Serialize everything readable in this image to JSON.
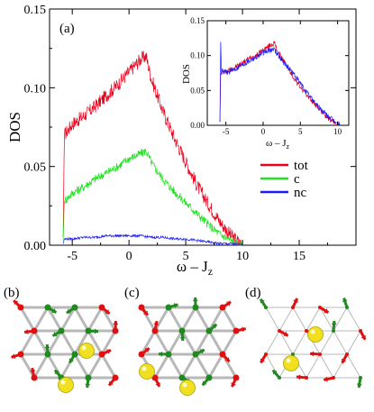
{
  "chart_data": {
    "type": "line",
    "panel_label": "(a)",
    "xlabel": "ω – J",
    "xlabel_sub": "z",
    "ylabel": "DOS",
    "xlim": [
      -7,
      20
    ],
    "ylim": [
      0,
      0.15
    ],
    "x_ticks": [
      -5,
      0,
      5,
      10,
      15
    ],
    "y_ticks": [
      0.0,
      0.05,
      0.1,
      0.15
    ],
    "x_tick_labels": [
      "-5",
      "0",
      "5",
      "10",
      "15"
    ],
    "y_tick_labels": [
      "0.00",
      "0.05",
      "0.10",
      "0.15"
    ],
    "legend_position": "right-middle",
    "series": [
      {
        "name": "tot",
        "color": "#e8001c",
        "x": [
          -5.8,
          -5.7,
          -5.0,
          -4.0,
          -3.0,
          -2.0,
          -1.0,
          0.0,
          1.0,
          1.5,
          2.0,
          3.0,
          4.0,
          5.0,
          6.0,
          7.0,
          8.0,
          9.0,
          9.5,
          10.0
        ],
        "y": [
          0.005,
          0.07,
          0.077,
          0.082,
          0.088,
          0.095,
          0.102,
          0.11,
          0.118,
          0.12,
          0.105,
          0.085,
          0.068,
          0.053,
          0.038,
          0.026,
          0.015,
          0.006,
          0.003,
          0.0
        ]
      },
      {
        "name": "c",
        "color": "#22e022",
        "x": [
          -5.8,
          -5.7,
          -5.0,
          -4.0,
          -3.0,
          -2.0,
          -1.0,
          0.0,
          1.0,
          1.5,
          2.0,
          3.0,
          4.0,
          5.0,
          6.0,
          7.0,
          8.0,
          9.0,
          9.5,
          10.0
        ],
        "y": [
          0.003,
          0.028,
          0.033,
          0.037,
          0.042,
          0.046,
          0.05,
          0.055,
          0.058,
          0.06,
          0.052,
          0.042,
          0.034,
          0.027,
          0.02,
          0.013,
          0.007,
          0.003,
          0.001,
          0.0
        ]
      },
      {
        "name": "nc",
        "color": "#1a1aff",
        "x": [
          -5.8,
          -5.7,
          -5.0,
          -4.0,
          -3.0,
          -2.0,
          -1.0,
          0.0,
          1.0,
          2.0,
          3.0,
          4.0,
          5.0,
          6.0,
          7.0,
          8.0,
          9.0,
          10.0
        ],
        "y": [
          0.001,
          0.004,
          0.004,
          0.005,
          0.005,
          0.006,
          0.006,
          0.006,
          0.006,
          0.005,
          0.005,
          0.004,
          0.004,
          0.003,
          0.002,
          0.001,
          0.001,
          0.0
        ]
      }
    ],
    "inset": {
      "xlabel": "ω – J",
      "xlabel_sub": "z",
      "ylabel": "DOS",
      "xlim": [
        -7.5,
        11.5
      ],
      "ylim": [
        0,
        0.15
      ],
      "x_ticks": [
        -5,
        0,
        5,
        10
      ],
      "y_ticks": [
        0.0,
        0.05,
        0.1,
        0.15
      ],
      "x_tick_labels": [
        "-5",
        "0",
        "5",
        "10"
      ],
      "y_tick_labels": [
        "0.00",
        "0.05",
        "0.10",
        "0.15"
      ],
      "series": [
        {
          "color": "#e8001c",
          "x": [
            -5.8,
            -5.7,
            -5.0,
            -4.0,
            -3.0,
            -2.0,
            -1.0,
            0.0,
            1.0,
            1.5,
            2.0,
            3.0,
            4.0,
            5.0,
            6.0,
            7.0,
            8.0,
            9.0,
            10.0
          ],
          "y": [
            0.005,
            0.075,
            0.077,
            0.082,
            0.088,
            0.095,
            0.1,
            0.108,
            0.115,
            0.118,
            0.105,
            0.088,
            0.07,
            0.055,
            0.042,
            0.03,
            0.018,
            0.008,
            0.0
          ]
        },
        {
          "color": "#1a1aff",
          "x": [
            -5.8,
            -5.7,
            -5.6,
            -5.0,
            -4.0,
            -3.0,
            -2.0,
            -1.0,
            0.0,
            1.0,
            1.5,
            2.0,
            3.0,
            4.0,
            5.0,
            6.0,
            7.0,
            8.0,
            9.0,
            10.0,
            10.3
          ],
          "y": [
            0.005,
            0.12,
            0.078,
            0.075,
            0.08,
            0.086,
            0.092,
            0.098,
            0.104,
            0.108,
            0.11,
            0.1,
            0.088,
            0.075,
            0.06,
            0.045,
            0.032,
            0.02,
            0.01,
            0.003,
            0.0
          ]
        }
      ]
    },
    "structure_panels": [
      {
        "label": "(b)"
      },
      {
        "label": "(c)"
      },
      {
        "label": "(d)"
      }
    ]
  }
}
